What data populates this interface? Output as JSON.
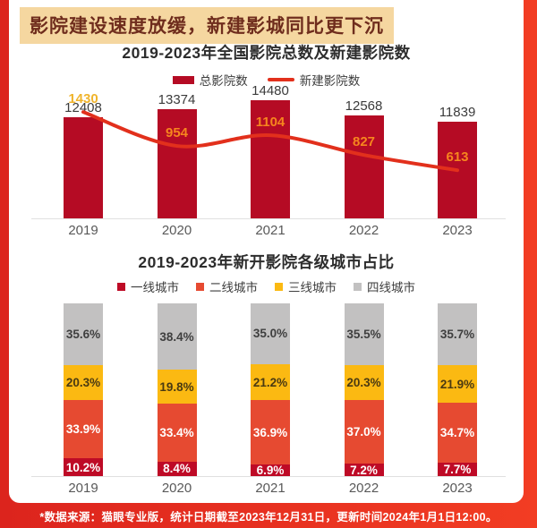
{
  "header": {
    "text": "影院建设速度放缓，新建影城同比更下沉"
  },
  "footer": {
    "text": "*数据来源：猫眼专业版，统计日期截至2023年12月31日，更新时间2024年1月1日12:00。"
  },
  "colors": {
    "frame_left": "#DC241D",
    "frame_right": "#F23D23",
    "card_bg": "#FFFFFF",
    "header_bg": "#F5D7A0",
    "header_text": "#6F2D1D",
    "title_text": "#2D2D2D",
    "axis_line": "#E0E0E0",
    "category_text": "#595959",
    "bar_label_text": "#3B3B3B",
    "footer_text": "#FFFFFF"
  },
  "chart_data": [
    {
      "type": "bar",
      "title": "2019-2023年全国影院总数及新建影院数",
      "categories": [
        "2019",
        "2020",
        "2021",
        "2022",
        "2023"
      ],
      "series": [
        {
          "name": "总影院数",
          "chart": "bar",
          "values": [
            12408,
            13374,
            14480,
            12568,
            11839
          ],
          "color": "#B50B24"
        },
        {
          "name": "新建影院数",
          "chart": "line",
          "values": [
            1430,
            954,
            1104,
            827,
            613
          ],
          "color": "#E2301C",
          "value_label_colors": [
            "#F0B42B",
            "#F6861E",
            "#F6861E",
            "#F6861E",
            "#F6861E"
          ]
        }
      ],
      "legend_position": "top",
      "grid": false
    },
    {
      "type": "stacked-bar",
      "title": "2019-2023年新开影院各级城市占比",
      "categories": [
        "2019",
        "2020",
        "2021",
        "2022",
        "2023"
      ],
      "series": [
        {
          "name": "一线城市",
          "values": [
            10.2,
            8.4,
            6.9,
            7.2,
            7.7
          ],
          "color": "#BE0A26",
          "label_color": "#FFFFFF"
        },
        {
          "name": "二线城市",
          "values": [
            33.9,
            33.4,
            36.9,
            37.0,
            34.7
          ],
          "color": "#E64A31",
          "label_color": "#FFFFFF"
        },
        {
          "name": "三线城市",
          "values": [
            20.3,
            19.8,
            21.2,
            20.3,
            21.9
          ],
          "color": "#FBB912",
          "label_color": "#4A3A12"
        },
        {
          "name": "四线城市",
          "values": [
            35.6,
            38.4,
            35.0,
            35.5,
            35.7
          ],
          "color": "#C2C1C1",
          "label_color": "#3F3F3F"
        }
      ],
      "legend_position": "top",
      "value_suffix": "%",
      "ylim": [
        0,
        100
      ],
      "grid": false
    }
  ]
}
